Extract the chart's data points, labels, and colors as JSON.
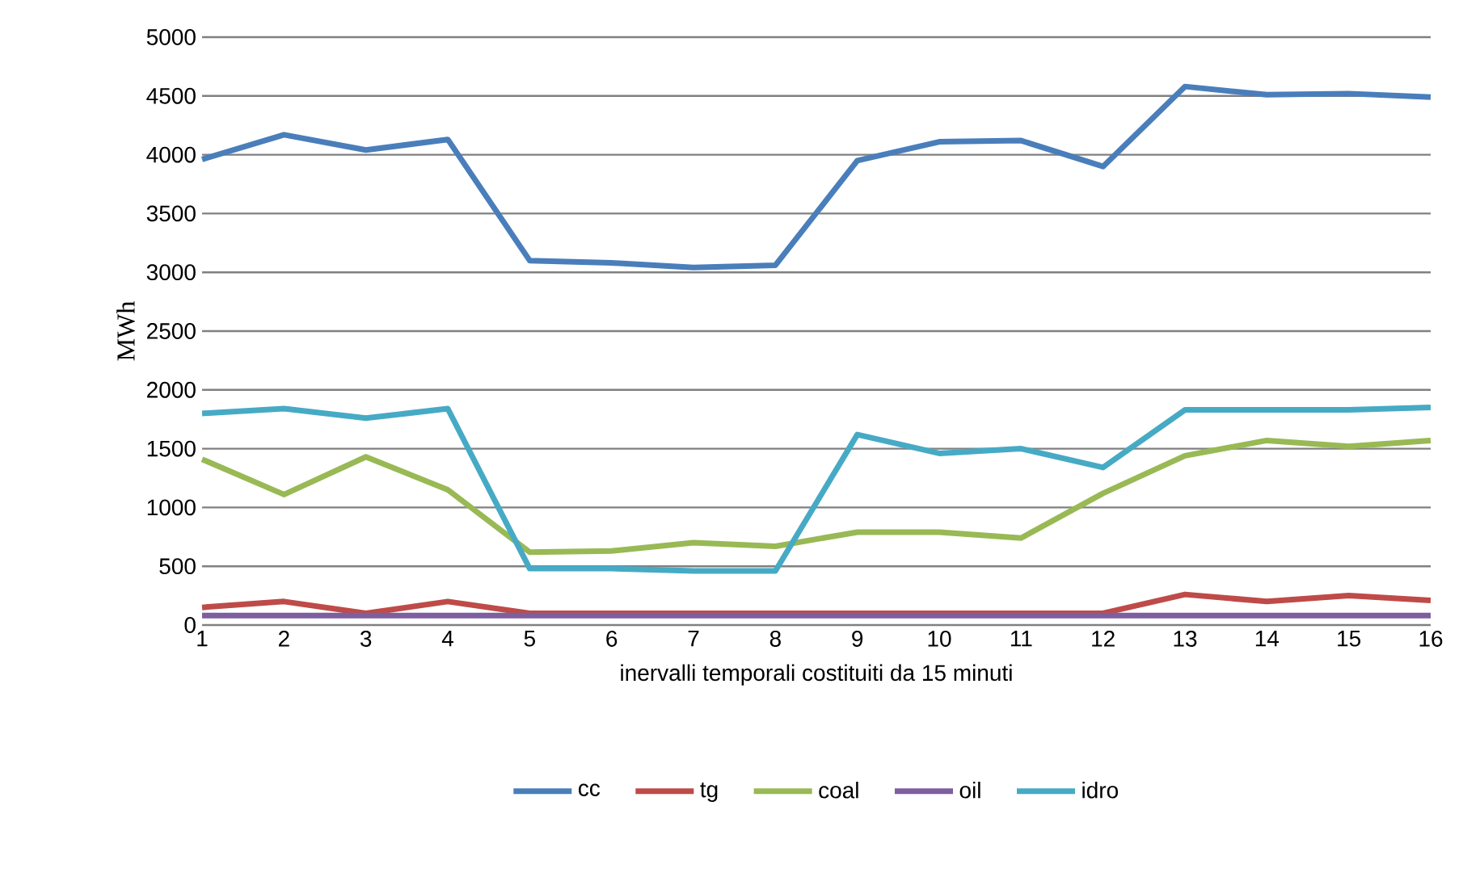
{
  "chart_data": {
    "type": "line",
    "xlabel": "inervalli temporali costituiti da 15 minuti",
    "ylabel": "MWh",
    "categories": [
      "1",
      "2",
      "3",
      "4",
      "5",
      "6",
      "7",
      "8",
      "9",
      "10",
      "11",
      "12",
      "13",
      "14",
      "15",
      "16"
    ],
    "series": [
      {
        "name": "cc",
        "color": "#4a7ebb",
        "values": [
          3960,
          4170,
          4040,
          4130,
          3100,
          3080,
          3040,
          3060,
          3950,
          4110,
          4120,
          3900,
          4580,
          4510,
          4520,
          4490
        ]
      },
      {
        "name": "tg",
        "color": "#be4b48",
        "values": [
          150,
          200,
          100,
          200,
          100,
          100,
          100,
          100,
          100,
          100,
          100,
          100,
          260,
          200,
          250,
          210
        ]
      },
      {
        "name": "coal",
        "color": "#98b954",
        "values": [
          1410,
          1110,
          1430,
          1150,
          620,
          630,
          700,
          670,
          790,
          790,
          740,
          1120,
          1440,
          1570,
          1520,
          1570
        ]
      },
      {
        "name": "oil",
        "color": "#7d5fa0",
        "values": [
          80,
          80,
          80,
          80,
          80,
          80,
          80,
          80,
          80,
          80,
          80,
          80,
          80,
          80,
          80,
          80
        ]
      },
      {
        "name": "idro",
        "color": "#46aac5",
        "values": [
          1800,
          1840,
          1760,
          1840,
          480,
          480,
          460,
          460,
          1620,
          1460,
          1500,
          1340,
          1830,
          1830,
          1830,
          1850
        ]
      }
    ],
    "ylim": [
      0,
      5000
    ],
    "yticks": [
      0,
      500,
      1000,
      1500,
      2000,
      2500,
      3000,
      3500,
      4000,
      4500,
      5000
    ],
    "grid": "y",
    "legend": "bottom",
    "marker": "none",
    "line_style": "solid"
  }
}
